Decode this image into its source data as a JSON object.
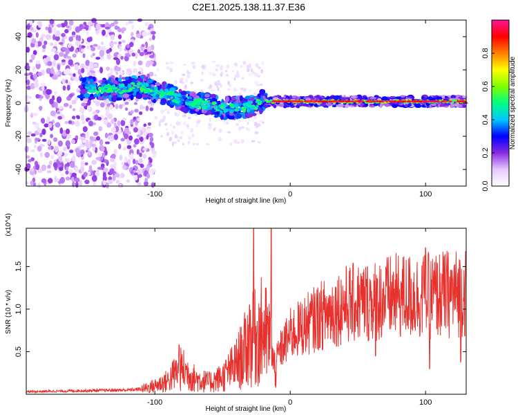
{
  "title": "C2E1.2025.138.11.37.E36",
  "chart_data": [
    {
      "type": "heatmap",
      "xlabel": "Height of straight line (km)",
      "ylabel": "Frequency (Hz)",
      "xlim": [
        -195,
        130
      ],
      "ylim": [
        -50,
        50
      ],
      "x_ticks": [
        {
          "v": -100,
          "label": "-100"
        },
        {
          "v": 0,
          "label": "0"
        },
        {
          "v": 100,
          "label": "100"
        }
      ],
      "y_ticks": [
        {
          "v": 40,
          "label": "40"
        },
        {
          "v": 20,
          "label": "20"
        },
        {
          "v": 0,
          "label": "0"
        },
        {
          "v": -20,
          "label": "-20"
        },
        {
          "v": -40,
          "label": "-40"
        }
      ],
      "colorbar": {
        "label": "Normalized spectral amplitude",
        "range": [
          0,
          1
        ],
        "ticks": [
          {
            "v": 0.0,
            "label": "0.0"
          },
          {
            "v": 0.2,
            "label": "0.2"
          },
          {
            "v": 0.4,
            "label": "0.4"
          },
          {
            "v": 0.6,
            "label": "0.6"
          },
          {
            "v": 0.8,
            "label": "0.8"
          }
        ],
        "colormap": [
          "#ffffff",
          "#e6c8ff",
          "#8a2be2",
          "#0000ff",
          "#00c8ff",
          "#00ff80",
          "#80ff00",
          "#ffff00",
          "#ff8000",
          "#ff0000",
          "#ff1493"
        ]
      },
      "ridge": [
        {
          "x": -150,
          "y": 9
        },
        {
          "x": -130,
          "y": 8
        },
        {
          "x": -110,
          "y": 10
        },
        {
          "x": -100,
          "y": 7
        },
        {
          "x": -90,
          "y": 5
        },
        {
          "x": -80,
          "y": 2
        },
        {
          "x": -70,
          "y": 0
        },
        {
          "x": -60,
          "y": -1
        },
        {
          "x": -50,
          "y": -3
        },
        {
          "x": -40,
          "y": -3
        },
        {
          "x": -30,
          "y": -2
        },
        {
          "x": -20,
          "y": 1
        },
        {
          "x": -10,
          "y": 2
        },
        {
          "x": 0,
          "y": 2
        },
        {
          "x": 130,
          "y": 1
        }
      ]
    },
    {
      "type": "line",
      "xlabel": "Height of straight line (km)",
      "ylabel": "SNR (10 * v/v)",
      "y_multiplier": "(x10^4)",
      "xlim": [
        -195,
        130
      ],
      "ylim": [
        0,
        1.95
      ],
      "x_ticks": [
        {
          "v": -100,
          "label": "-100"
        },
        {
          "v": 0,
          "label": "0"
        },
        {
          "v": 100,
          "label": "100"
        }
      ],
      "y_ticks": [
        {
          "v": 0.5,
          "label": "0.5"
        },
        {
          "v": 1.0,
          "label": "1.0"
        },
        {
          "v": 1.5,
          "label": "1.5"
        }
      ],
      "color": "#e8302c",
      "envelope": [
        {
          "x": -195,
          "y": 0.03
        },
        {
          "x": -120,
          "y": 0.05
        },
        {
          "x": -110,
          "y": 0.06
        },
        {
          "x": -100,
          "y": 0.1
        },
        {
          "x": -90,
          "y": 0.16
        },
        {
          "x": -85,
          "y": 0.25
        },
        {
          "x": -80,
          "y": 0.3
        },
        {
          "x": -70,
          "y": 0.18
        },
        {
          "x": -60,
          "y": 0.14
        },
        {
          "x": -50,
          "y": 0.2
        },
        {
          "x": -40,
          "y": 0.35
        },
        {
          "x": -30,
          "y": 0.6
        },
        {
          "x": -20,
          "y": 0.75
        },
        {
          "x": -15,
          "y": 0.6
        },
        {
          "x": -12,
          "y": 0.3
        },
        {
          "x": -8,
          "y": 0.5
        },
        {
          "x": 0,
          "y": 0.7
        },
        {
          "x": 20,
          "y": 0.9
        },
        {
          "x": 40,
          "y": 1.05
        },
        {
          "x": 60,
          "y": 1.1
        },
        {
          "x": 80,
          "y": 1.15
        },
        {
          "x": 100,
          "y": 1.15
        },
        {
          "x": 130,
          "y": 1.2
        }
      ],
      "spikes": [
        {
          "x": -27,
          "y": 1.95
        },
        {
          "x": -14,
          "y": 1.95
        },
        {
          "x": -30,
          "y": 1.05
        },
        {
          "x": -82,
          "y": 0.58
        },
        {
          "x": 100,
          "y": 1.72
        },
        {
          "x": 98,
          "y": 1.55
        },
        {
          "x": 126,
          "y": 1.55
        },
        {
          "x": 103,
          "y": 0.3
        },
        {
          "x": 126,
          "y": 0.38
        },
        {
          "x": 63,
          "y": 0.45
        }
      ]
    }
  ]
}
